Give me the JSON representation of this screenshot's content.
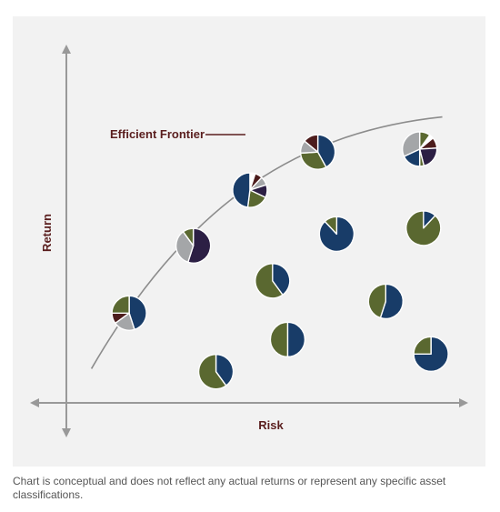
{
  "chart_data": {
    "type": "scatter",
    "title": "",
    "xlabel": "Risk",
    "ylabel": "Return",
    "xlim": [
      0,
      100
    ],
    "ylim": [
      0,
      100
    ],
    "grid": false,
    "legend": "none",
    "annotations": [
      {
        "text": "Efficient Frontier",
        "points_to": "frontier-curve"
      }
    ],
    "frontier": [
      {
        "x": 4,
        "y": 7
      },
      {
        "x": 30,
        "y": 65
      },
      {
        "x": 60,
        "y": 88
      },
      {
        "x": 97,
        "y": 93
      }
    ],
    "portfolios": [
      {
        "x": 14,
        "y": 26,
        "slices": [
          {
            "color": "navy",
            "value": 45
          },
          {
            "color": "gray",
            "value": 20
          },
          {
            "color": "maroon",
            "value": 10
          },
          {
            "color": "olive",
            "value": 25
          }
        ]
      },
      {
        "x": 31,
        "y": 49,
        "slices": [
          {
            "color": "plum",
            "value": 55
          },
          {
            "color": "gray",
            "value": 35
          },
          {
            "color": "olive",
            "value": 10
          }
        ]
      },
      {
        "x": 46,
        "y": 68,
        "slices": [
          {
            "color": "white",
            "value": 5
          },
          {
            "color": "maroon",
            "value": 7
          },
          {
            "color": "gray",
            "value": 8
          },
          {
            "color": "plum",
            "value": 12
          },
          {
            "color": "olive",
            "value": 20
          },
          {
            "color": "navy",
            "value": 48
          }
        ]
      },
      {
        "x": 64,
        "y": 81,
        "slices": [
          {
            "color": "navy",
            "value": 42
          },
          {
            "color": "olive",
            "value": 32
          },
          {
            "color": "gray",
            "value": 12
          },
          {
            "color": "maroon",
            "value": 14
          }
        ]
      },
      {
        "x": 91,
        "y": 82,
        "slices": [
          {
            "color": "olive",
            "value": 10
          },
          {
            "color": "white",
            "value": 4
          },
          {
            "color": "maroon",
            "value": 10
          },
          {
            "color": "plum",
            "value": 22
          },
          {
            "color": "olive",
            "value": 4
          },
          {
            "color": "navy",
            "value": 18
          },
          {
            "color": "gray",
            "value": 32
          }
        ]
      },
      {
        "x": 69,
        "y": 53,
        "slices": [
          {
            "color": "navy",
            "value": 88
          },
          {
            "color": "olive",
            "value": 12
          }
        ]
      },
      {
        "x": 92,
        "y": 55,
        "slices": [
          {
            "color": "navy",
            "value": 12
          },
          {
            "color": "olive",
            "value": 88
          }
        ]
      },
      {
        "x": 52,
        "y": 37,
        "slices": [
          {
            "color": "navy",
            "value": 40
          },
          {
            "color": "olive",
            "value": 60
          }
        ]
      },
      {
        "x": 82,
        "y": 30,
        "slices": [
          {
            "color": "navy",
            "value": 55
          },
          {
            "color": "olive",
            "value": 45
          }
        ]
      },
      {
        "x": 56,
        "y": 17,
        "slices": [
          {
            "color": "navy",
            "value": 50
          },
          {
            "color": "olive",
            "value": 50
          }
        ]
      },
      {
        "x": 37,
        "y": 6,
        "slices": [
          {
            "color": "navy",
            "value": 40
          },
          {
            "color": "olive",
            "value": 60
          }
        ]
      },
      {
        "x": 94,
        "y": 12,
        "slices": [
          {
            "color": "navy",
            "value": 75
          },
          {
            "color": "olive",
            "value": 25
          }
        ]
      }
    ]
  },
  "colors": {
    "navy": "#183c68",
    "olive": "#5a6830",
    "plum": "#2c1f44",
    "maroon": "#4c1c1c",
    "gray": "#a4a6a8",
    "white": "#ffffff",
    "axis": "#999999",
    "curve": "#8c8c8c",
    "annotation": "#5a1e1e",
    "panel": "#f2f2f2"
  },
  "caption": "Chart is conceptual and does not reflect any actual returns or represent any specific asset classifications."
}
